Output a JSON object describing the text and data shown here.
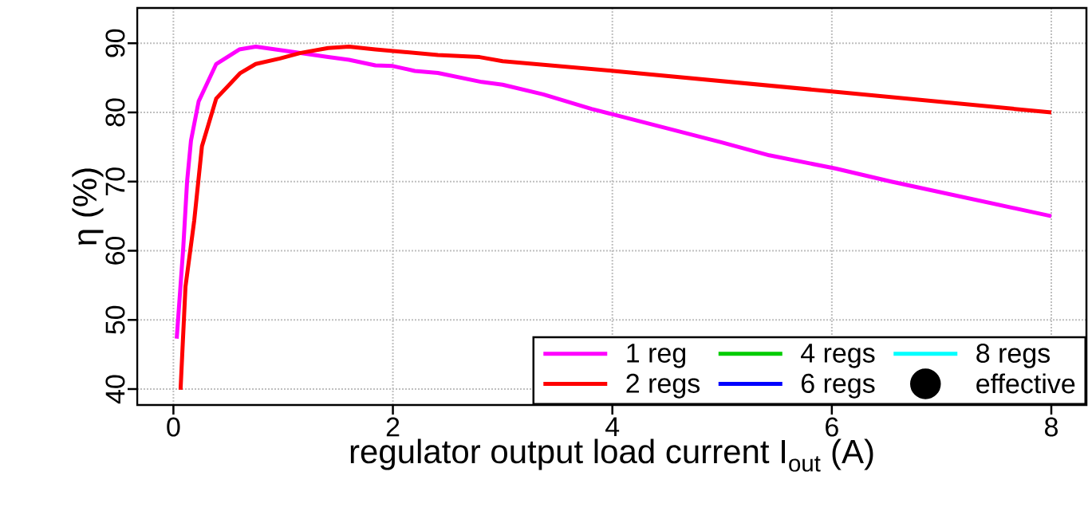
{
  "chart_data": {
    "type": "line",
    "xlabel": "regulator output load current I$_{out}$ (A)",
    "ylabel": "η (%)",
    "xlim": [
      -0.33,
      8.32
    ],
    "ylim": [
      37.7,
      95.1
    ],
    "xticks": [
      0,
      2,
      4,
      6,
      8
    ],
    "yticks": [
      40,
      50,
      60,
      70,
      80,
      90
    ],
    "grid": true,
    "legend": "bottom right",
    "series": [
      {
        "name": "1 reg",
        "color": "#ff00ff",
        "x": [
          0.03,
          0.09,
          0.125,
          0.16,
          0.23,
          0.39,
          0.6,
          0.75,
          1.02,
          1.41,
          1.6,
          1.84,
          2.0,
          2.2,
          2.41,
          2.81,
          3.0,
          3.37,
          3.81,
          4.01,
          4.99,
          5.43,
          6.03,
          6.54,
          8
        ],
        "values": [
          47.3,
          60.5,
          70.1,
          75.9,
          81.6,
          87.0,
          89.1,
          89.5,
          88.9,
          88.0,
          87.6,
          86.8,
          86.7,
          86.0,
          85.7,
          84.4,
          84.0,
          82.6,
          80.5,
          79.7,
          75.7,
          73.8,
          71.9,
          70.0,
          65
        ]
      },
      {
        "name": "2 regs",
        "color": "#ff0000",
        "x": [
          0.065,
          0.11,
          0.19,
          0.26,
          0.39,
          0.61,
          0.75,
          0.97,
          1.16,
          1.41,
          1.6,
          1.84,
          2.41,
          2.79,
          3.0,
          4.01,
          6.02,
          8
        ],
        "values": [
          39.9,
          54.8,
          64.4,
          75.1,
          82.0,
          85.7,
          87.0,
          87.8,
          88.6,
          89.3,
          89.5,
          89.1,
          88.3,
          88.0,
          87.4,
          86.0,
          83.0,
          80
        ]
      },
      {
        "name": "4 regs",
        "color": "#00cc00"
      },
      {
        "name": "6 regs",
        "color": "#0000ff"
      },
      {
        "name": "8 regs",
        "color": "#00ffff"
      },
      {
        "name": "effective",
        "color": "#000000",
        "type": "scatter",
        "marker": "circle"
      }
    ]
  }
}
